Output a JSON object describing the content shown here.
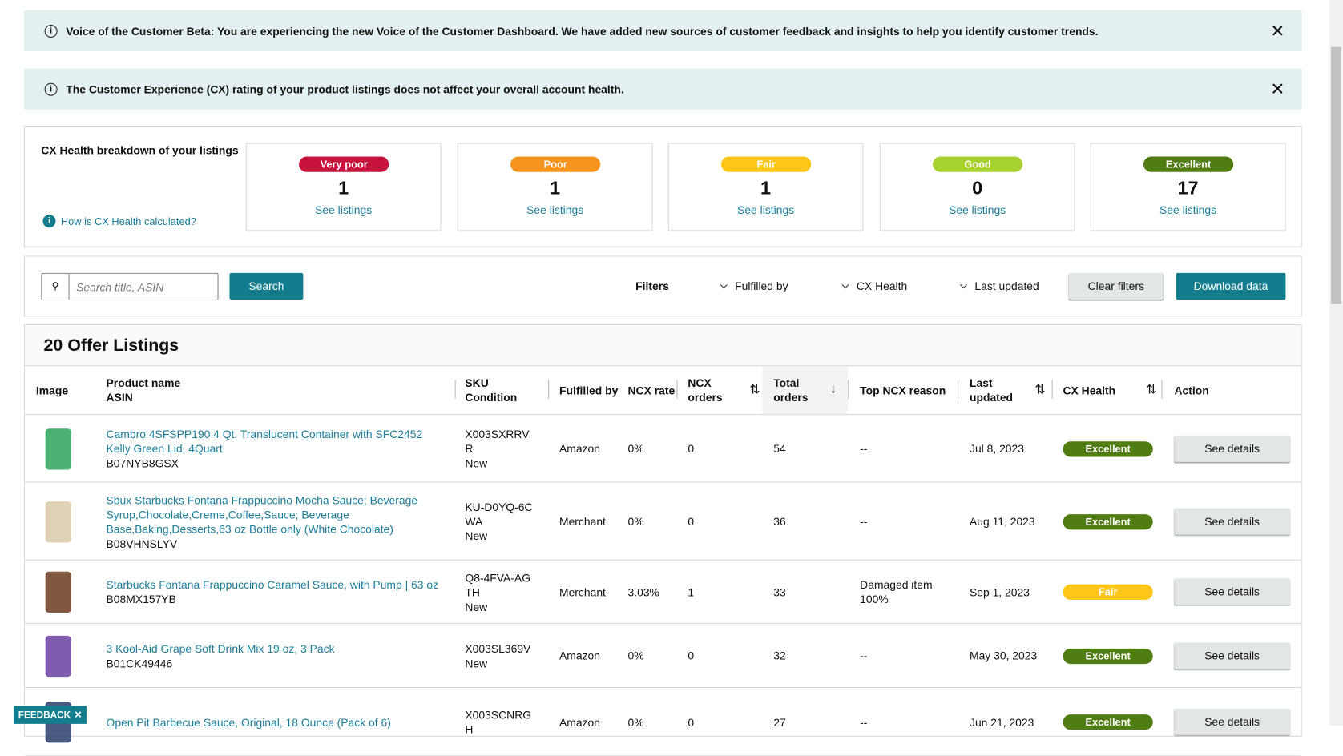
{
  "banners": [
    {
      "text": "Voice of the Customer Beta: You are experiencing the new Voice of the Customer Dashboard. We have added new sources of customer feedback and insights to help you identify customer trends."
    },
    {
      "text": "The Customer Experience (CX) rating of your product listings does not affect your overall account health."
    }
  ],
  "health": {
    "title": "CX Health breakdown of your listings",
    "help_link": "How is CX Health calculated?",
    "cards": [
      {
        "label": "Very poor",
        "count": 1,
        "link": "See listings",
        "color": "#c8133c"
      },
      {
        "label": "Poor",
        "count": 1,
        "link": "See listings",
        "color": "#f7941d"
      },
      {
        "label": "Fair",
        "count": 1,
        "link": "See listings",
        "color": "#ffc61a"
      },
      {
        "label": "Good",
        "count": 0,
        "link": "See listings",
        "color": "#a6d12e"
      },
      {
        "label": "Excellent",
        "count": 17,
        "link": "See listings",
        "color": "#507d12"
      }
    ]
  },
  "toolbar": {
    "search_placeholder": "Search title, ASIN",
    "search_button": "Search",
    "filters_label": "Filters",
    "dropdowns": [
      "Fulfilled by",
      "CX Health",
      "Last updated"
    ],
    "clear_button": "Clear filters",
    "download_button": "Download data"
  },
  "listings": {
    "title": "20 Offer Listings",
    "columns": [
      [
        "Image"
      ],
      [
        "Product name",
        "ASIN"
      ],
      [
        "SKU",
        "Condition"
      ],
      [
        "Fulfilled by"
      ],
      [
        "NCX rate"
      ],
      [
        "NCX",
        "orders"
      ],
      [
        "Total",
        "orders"
      ],
      [
        "Top NCX reason"
      ],
      [
        "Last",
        "updated"
      ],
      [
        "CX Health"
      ],
      [
        "Action"
      ]
    ],
    "rows": [
      {
        "name": "Cambro 4SFSPP190 4 Qt. Translucent Container with SFC2452 Kelly Green Lid, 4Quart",
        "asin": "B07NYB8GSX",
        "sku": "X003SXRRVR",
        "condition": "New",
        "fulfilled": "Amazon",
        "ncx_rate": "0%",
        "ncx_orders": 0,
        "total_orders": 54,
        "reason": [
          "--"
        ],
        "updated": "Jul 8, 2023",
        "health": "Excellent",
        "action": "See details"
      },
      {
        "name": "Sbux Starbucks Fontana Frappuccino Mocha Sauce; Beverage Syrup,Chocolate,Creme,Coffee,Sauce; Beverage Base,Baking,Desserts,63 oz Bottle only (White Chocolate)",
        "asin": "B08VHNSLYV",
        "sku": "KU-D0YQ-6CWA",
        "condition": "New",
        "fulfilled": "Merchant",
        "ncx_rate": "0%",
        "ncx_orders": 0,
        "total_orders": 36,
        "reason": [
          "--"
        ],
        "updated": "Aug 11, 2023",
        "health": "Excellent",
        "action": "See details"
      },
      {
        "name": "Starbucks Fontana Frappuccino Caramel Sauce, with Pump | 63 oz",
        "asin": "B08MX157YB",
        "sku": "Q8-4FVA-AGTH",
        "condition": "New",
        "fulfilled": "Merchant",
        "ncx_rate": "3.03%",
        "ncx_orders": 1,
        "total_orders": 33,
        "reason": [
          "Damaged item",
          "100%"
        ],
        "updated": "Sep 1, 2023",
        "health": "Fair",
        "action": "See details"
      },
      {
        "name": "3 Kool-Aid Grape Soft Drink Mix 19 oz, 3 Pack",
        "asin": "B01CK49446",
        "sku": "X003SL369V",
        "condition": "New",
        "fulfilled": "Amazon",
        "ncx_rate": "0%",
        "ncx_orders": 0,
        "total_orders": 32,
        "reason": [
          "--"
        ],
        "updated": "May 30, 2023",
        "health": "Excellent",
        "action": "See details"
      },
      {
        "name": "Open Pit Barbecue Sauce, Original, 18 Ounce (Pack of 6)",
        "sku": "X003SCNRGH",
        "fulfilled": "Amazon",
        "ncx_rate": "0%",
        "ncx_orders": 0,
        "total_orders": 27,
        "reason": [
          "--"
        ],
        "updated": "Jun 21, 2023",
        "health": "Excellent",
        "action": "See details"
      }
    ]
  },
  "feedback": "FEEDBACK"
}
